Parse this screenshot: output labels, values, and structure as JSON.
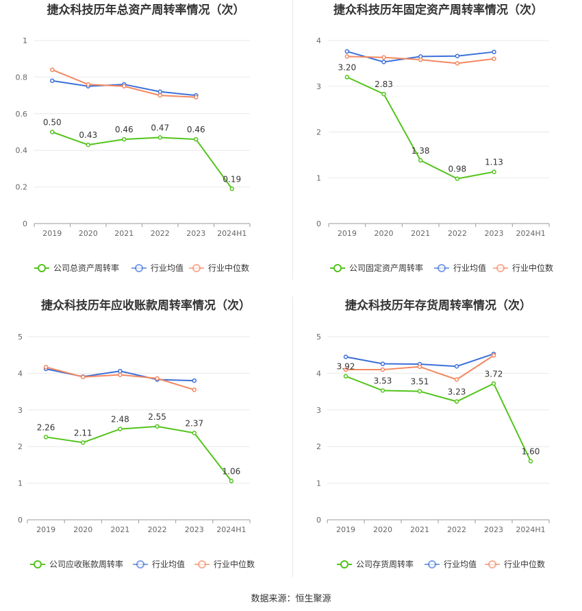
{
  "footer": {
    "source": "数据来源：恒生聚源"
  },
  "legend_labels": {
    "avg": "行业均值",
    "median": "行业中位数"
  },
  "colors": {
    "company": "#52c41a",
    "avg": "#3b6fd8",
    "median": "#f4875f",
    "grid": "#e8e8e8",
    "axis": "#999999"
  },
  "chart_data": [
    {
      "type": "line",
      "title": "捷众科技历年总资产周转率情况（次）",
      "categories": [
        "2019",
        "2020",
        "2021",
        "2022",
        "2023",
        "2024H1"
      ],
      "y_ticks": [
        "0",
        "0.2",
        "0.4",
        "0.6",
        "0.8",
        "1"
      ],
      "ylim": [
        0,
        1
      ],
      "series": [
        {
          "name": "公司总资产周转率",
          "key": "company",
          "values": [
            0.5,
            0.43,
            0.46,
            0.47,
            0.46,
            0.19
          ],
          "labels": [
            "0.50",
            "0.43",
            "0.46",
            "0.47",
            "0.46",
            "0.19"
          ]
        },
        {
          "name": "行业均值",
          "key": "avg",
          "values": [
            0.78,
            0.75,
            0.76,
            0.72,
            0.7,
            null
          ]
        },
        {
          "name": "行业中位数",
          "key": "median",
          "values": [
            0.84,
            0.76,
            0.75,
            0.7,
            0.69,
            null
          ]
        }
      ]
    },
    {
      "type": "line",
      "title": "捷众科技历年固定资产周转率情况（次）",
      "categories": [
        "2019",
        "2020",
        "2021",
        "2022",
        "2023",
        "2024H1"
      ],
      "y_ticks": [
        "0",
        "1",
        "2",
        "3",
        "4"
      ],
      "ylim": [
        0,
        4
      ],
      "series": [
        {
          "name": "公司固定资产周转率",
          "key": "company",
          "values": [
            3.2,
            2.83,
            1.38,
            0.98,
            1.13,
            null
          ],
          "labels": [
            "3.20",
            "2.83",
            "1.38",
            "0.98",
            "1.13",
            ""
          ]
        },
        {
          "name": "行业均值",
          "key": "avg",
          "values": [
            3.76,
            3.53,
            3.65,
            3.66,
            3.75,
            null
          ]
        },
        {
          "name": "行业中位数",
          "key": "median",
          "values": [
            3.65,
            3.63,
            3.58,
            3.5,
            3.6,
            null
          ]
        }
      ]
    },
    {
      "type": "line",
      "title": "捷众科技历年应收账款周转率情况（次）",
      "categories": [
        "2019",
        "2020",
        "2021",
        "2022",
        "2023",
        "2024H1"
      ],
      "y_ticks": [
        "0",
        "1",
        "2",
        "3",
        "4",
        "5"
      ],
      "ylim": [
        0,
        5
      ],
      "series": [
        {
          "name": "公司应收账款周转率",
          "key": "company",
          "values": [
            2.26,
            2.11,
            2.48,
            2.55,
            2.37,
            1.06
          ],
          "labels": [
            "2.26",
            "2.11",
            "2.48",
            "2.55",
            "2.37",
            "1.06"
          ]
        },
        {
          "name": "行业均值",
          "key": "avg",
          "values": [
            4.12,
            3.91,
            4.06,
            3.83,
            3.8,
            null
          ]
        },
        {
          "name": "行业中位数",
          "key": "median",
          "values": [
            4.17,
            3.9,
            3.96,
            3.86,
            3.55,
            null
          ]
        }
      ]
    },
    {
      "type": "line",
      "title": "捷众科技历年存货周转率情况（次）",
      "categories": [
        "2019",
        "2020",
        "2021",
        "2022",
        "2023",
        "2024H1"
      ],
      "y_ticks": [
        "0",
        "1",
        "2",
        "3",
        "4",
        "5"
      ],
      "ylim": [
        0,
        5
      ],
      "series": [
        {
          "name": "公司存货周转率",
          "key": "company",
          "values": [
            3.92,
            3.53,
            3.51,
            3.23,
            3.72,
            1.6
          ],
          "labels": [
            "3.92",
            "3.53",
            "3.51",
            "3.23",
            "3.72",
            "1.60"
          ]
        },
        {
          "name": "行业均值",
          "key": "avg",
          "values": [
            4.45,
            4.26,
            4.25,
            4.19,
            4.53,
            null
          ]
        },
        {
          "name": "行业中位数",
          "key": "median",
          "values": [
            4.1,
            4.1,
            4.18,
            3.83,
            4.49,
            null
          ]
        }
      ]
    }
  ]
}
